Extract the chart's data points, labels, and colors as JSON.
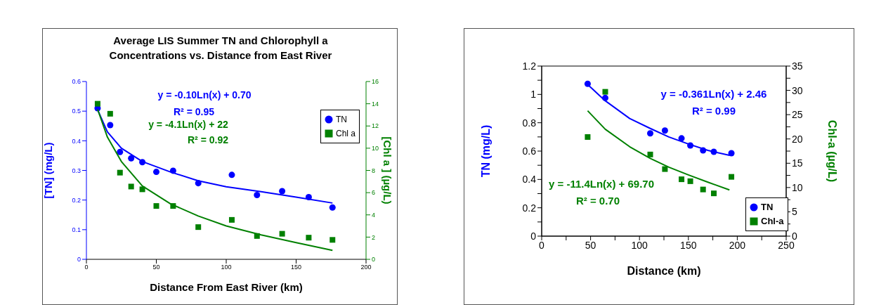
{
  "chart_data": [
    {
      "type": "scatter",
      "title": "Average LIS Summer TN and Chlorophyll a\nConcentrations vs. Distance from East River",
      "xlabel": "Distance From East River (km)",
      "ylabel": "[TN] (mg/L)",
      "y2label": "[Chl a ] (µg/L)",
      "xlim": [
        0,
        200
      ],
      "xticks": [
        0,
        50,
        100,
        150,
        200
      ],
      "ylim": [
        0,
        0.6
      ],
      "yticks": [
        0,
        0.1,
        0.2,
        0.3,
        0.4,
        0.5,
        0.6
      ],
      "y2lim": [
        0,
        16
      ],
      "y2ticks": [
        0,
        2,
        4,
        6,
        8,
        10,
        12,
        14,
        16
      ],
      "legend": "top right",
      "annotations": [
        "y = -0.10Ln(x) + 0.70",
        "R² = 0.95",
        "y = -4.1Ln(x) + 22",
        "R² = 0.92"
      ],
      "series": [
        {
          "name": "TN",
          "marker": "circle",
          "color": "#0000ff",
          "x": [
            8,
            17,
            24,
            32,
            40,
            50,
            62,
            80,
            104,
            122,
            140,
            159,
            176
          ],
          "values": [
            0.51,
            0.453,
            0.362,
            0.341,
            0.328,
            0.295,
            0.299,
            0.257,
            0.285,
            0.217,
            0.23,
            0.21,
            0.175
          ]
        },
        {
          "name": "Chl a",
          "marker": "square",
          "axis": "y2",
          "color": "#008000",
          "x": [
            8,
            17,
            24,
            32,
            40,
            50,
            62,
            80,
            104,
            122,
            140,
            159,
            176
          ],
          "values": [
            14.0,
            13.1,
            7.8,
            6.55,
            6.3,
            4.8,
            4.8,
            2.9,
            3.55,
            2.1,
            2.3,
            1.95,
            1.75
          ]
        },
        {
          "type": "line",
          "color": "#0000ff",
          "x": [
            8,
            15,
            25,
            40,
            60,
            80,
            100,
            125,
            150,
            176
          ],
          "values": [
            0.505,
            0.43,
            0.375,
            0.33,
            0.295,
            0.265,
            0.245,
            0.228,
            0.21,
            0.19
          ]
        },
        {
          "type": "line",
          "axis": "y2",
          "color": "#008000",
          "x": [
            8,
            15,
            25,
            40,
            60,
            80,
            100,
            125,
            150,
            176
          ],
          "values": [
            13.5,
            11.0,
            8.8,
            6.6,
            5.0,
            3.9,
            3.0,
            2.2,
            1.5,
            0.8
          ]
        }
      ]
    },
    {
      "type": "scatter",
      "xlabel": "Distance (km)",
      "ylabel": "TN (mg/L)",
      "y2label": "Chl-a (µg/L)",
      "xlim": [
        0,
        250
      ],
      "xticks": [
        0,
        {
          "value": 25,
          "label": null
        },
        50,
        {
          "value": 75,
          "label": null
        },
        100,
        {
          "value": 125,
          "label": null
        },
        150,
        {
          "value": 175,
          "label": null
        },
        200,
        {
          "value": 225,
          "label": null
        },
        250
      ],
      "ylim": [
        0,
        1.2
      ],
      "yticks": [
        0,
        {
          "value": 0.1,
          "label": null
        },
        0.2,
        {
          "value": 0.3,
          "label": null
        },
        0.4,
        {
          "value": 0.5,
          "label": null
        },
        0.6,
        {
          "value": 0.7,
          "label": null
        },
        0.8,
        {
          "value": 0.9,
          "label": null
        },
        1,
        {
          "value": 1.1,
          "label": null
        },
        1.2
      ],
      "y2lim": [
        0,
        35
      ],
      "y2ticks": [
        0,
        {
          "value": 2.5,
          "label": null
        },
        5,
        {
          "value": 7.5,
          "label": null
        },
        10,
        {
          "value": 12.5,
          "label": null
        },
        15,
        {
          "value": 17.5,
          "label": null
        },
        20,
        {
          "value": 22.5,
          "label": null
        },
        25,
        {
          "value": 27.5,
          "label": null
        },
        30,
        {
          "value": 32.5,
          "label": null
        },
        35
      ],
      "legend": "bottom right",
      "annotations": [
        "y = -0.361Ln(x) + 2.46",
        "R² = 0.99",
        "y = -11.4Ln(x) + 69.70",
        "R² = 0.70"
      ],
      "series": [
        {
          "name": "TN",
          "marker": "circle",
          "color": "#0000ff",
          "x": [
            47,
            65,
            111,
            126,
            143,
            152,
            165,
            176,
            194
          ],
          "values": [
            1.075,
            0.975,
            0.725,
            0.745,
            0.69,
            0.64,
            0.605,
            0.595,
            0.585
          ]
        },
        {
          "name": "Chl-a",
          "marker": "square",
          "axis": "y2",
          "color": "#008000",
          "x": [
            47,
            65,
            111,
            126,
            143,
            152,
            165,
            176,
            194
          ],
          "values": [
            20.4,
            29.7,
            16.8,
            13.8,
            11.7,
            11.3,
            9.6,
            8.8,
            12.2
          ]
        },
        {
          "type": "line",
          "color": "#0000ff",
          "x": [
            47,
            65,
            90,
            111,
            130,
            150,
            170,
            192
          ],
          "values": [
            1.07,
            0.955,
            0.83,
            0.76,
            0.7,
            0.65,
            0.605,
            0.57
          ]
        },
        {
          "type": "line",
          "axis": "y2",
          "color": "#008000",
          "x": [
            47,
            65,
            90,
            111,
            130,
            150,
            170,
            192
          ],
          "values": [
            25.8,
            22.0,
            18.4,
            16.0,
            14.2,
            12.6,
            11.1,
            9.5
          ]
        }
      ]
    }
  ]
}
